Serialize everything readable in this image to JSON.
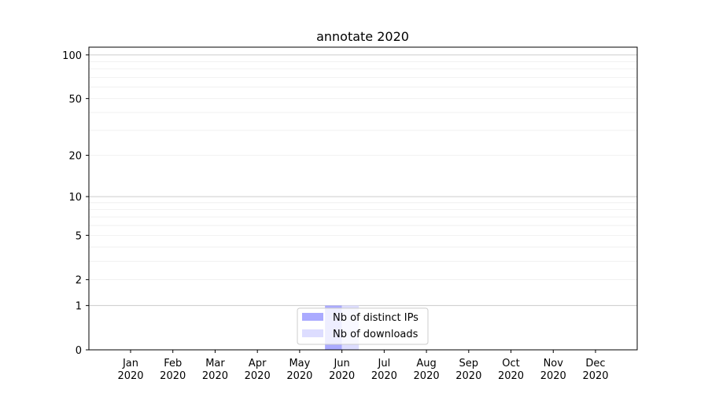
{
  "chart_data": {
    "type": "bar",
    "title": "annotate 2020",
    "xlabel": "",
    "ylabel": "",
    "yscale": "log(1+y)",
    "ylim": [
      0,
      113
    ],
    "yticks": [
      0,
      1,
      2,
      5,
      10,
      20,
      50,
      100
    ],
    "ytick_labels": [
      "0",
      "1",
      "2",
      "5",
      "10",
      "20",
      "50",
      "100"
    ],
    "grid": true,
    "categories": [
      "Jan\n2020",
      "Feb\n2020",
      "Mar\n2020",
      "Apr\n2020",
      "May\n2020",
      "Jun\n2020",
      "Jul\n2020",
      "Aug\n2020",
      "Sep\n2020",
      "Oct\n2020",
      "Nov\n2020",
      "Dec\n2020"
    ],
    "series": [
      {
        "name": "Nb of distinct IPs",
        "color": "#aaaaff",
        "values": [
          0,
          0,
          0,
          0,
          0,
          1,
          0,
          0,
          0,
          0,
          0,
          0
        ]
      },
      {
        "name": "Nb of downloads",
        "color": "#ddddff",
        "values": [
          0,
          0,
          0,
          0,
          0,
          1,
          0,
          0,
          0,
          0,
          0,
          0
        ]
      }
    ],
    "legend_position": "lower-center"
  }
}
